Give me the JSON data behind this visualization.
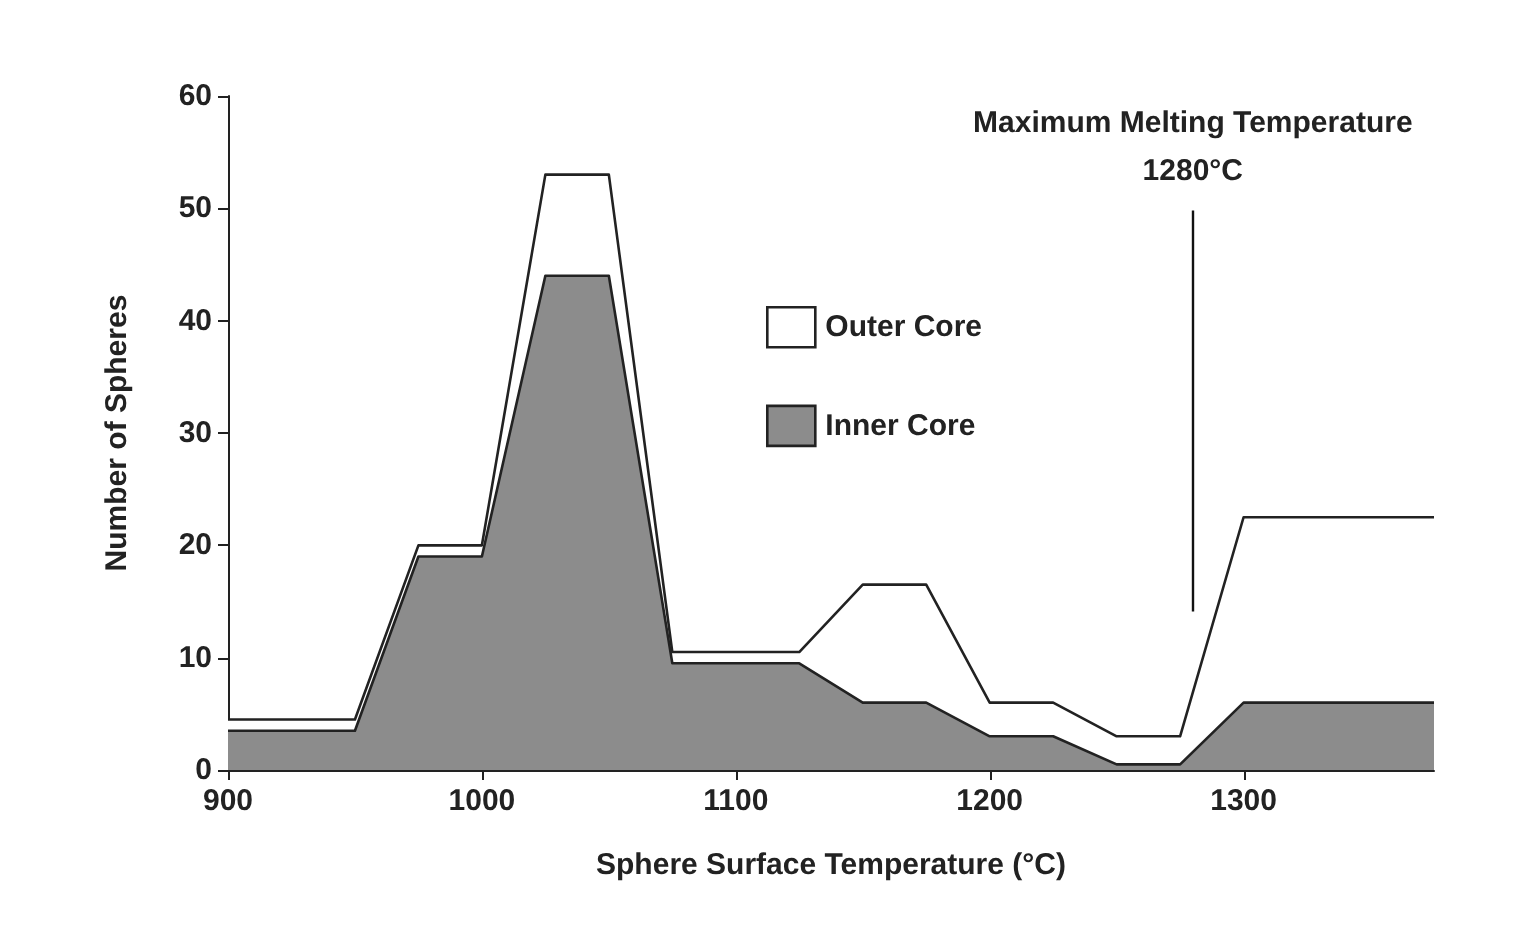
{
  "chart_data": {
    "type": "area",
    "xlabel": "Sphere Surface Temperature (°C)",
    "ylabel": "Number of Spheres",
    "x": [
      900,
      950,
      975,
      1000,
      1025,
      1050,
      1075,
      1125,
      1150,
      1175,
      1200,
      1225,
      1250,
      1275,
      1300,
      1375
    ],
    "series": [
      {
        "name": "Outer Core",
        "color": "#ffffff",
        "values": [
          4.5,
          4.5,
          20,
          20,
          53,
          53,
          10.5,
          10.5,
          16.5,
          16.5,
          6,
          6,
          3,
          3,
          22.5,
          22.5
        ]
      },
      {
        "name": "Inner Core",
        "color": "#8c8c8c",
        "values": [
          3.5,
          3.5,
          19,
          19,
          44,
          44,
          9.5,
          9.5,
          6,
          6,
          3,
          3,
          0.5,
          0.5,
          6,
          6
        ]
      }
    ],
    "xlim": [
      900,
      1375
    ],
    "xticks": [
      900,
      1000,
      1100,
      1200,
      1300
    ],
    "ylim": [
      0,
      60
    ],
    "yticks": [
      0,
      10,
      20,
      30,
      40,
      50,
      60
    ],
    "grid": false,
    "legend": "top",
    "marker": "none",
    "ref_lines": [
      {
        "axis": "x",
        "value": 1280,
        "label": "Maximum Melting Temperature\n1280°C",
        "color": "#111111"
      }
    ]
  }
}
